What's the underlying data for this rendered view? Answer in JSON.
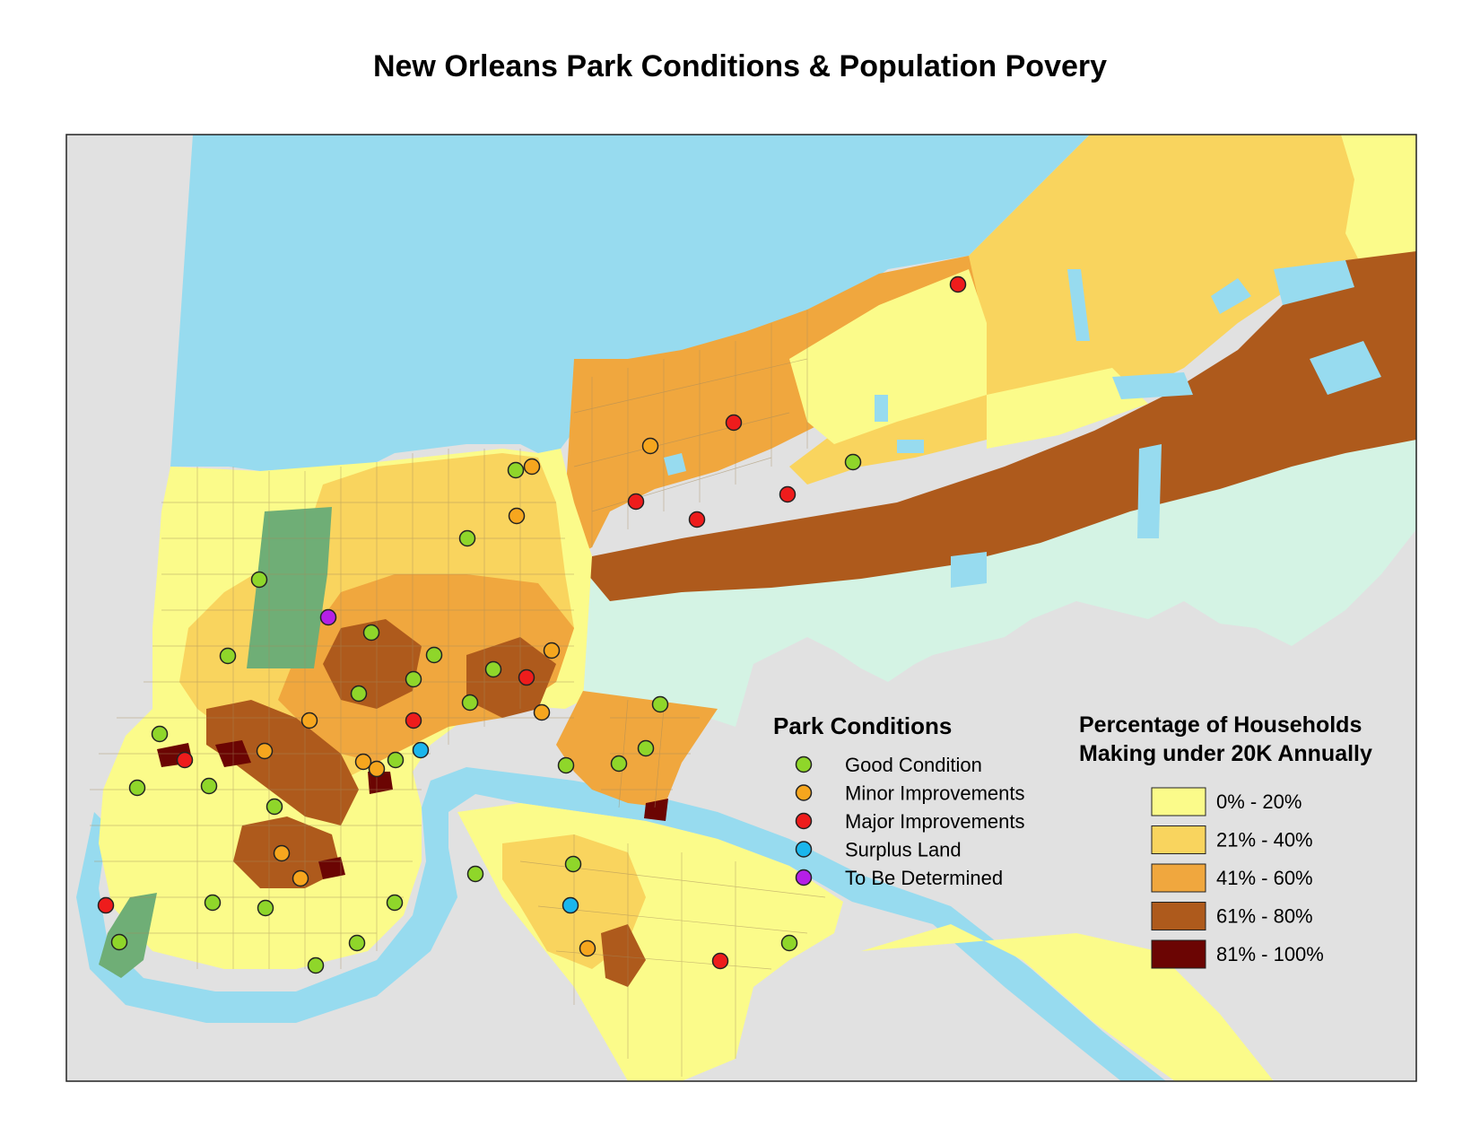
{
  "title": "New Orleans Park Conditions & Population Povery",
  "colors": {
    "water": "#97dbef",
    "land_outside": "#e1e1e1",
    "wetland": "#d4f3e4",
    "park": "#6fae76",
    "tract_lines": "#a48a5c"
  },
  "park_legend": {
    "title": "Park Conditions",
    "items": [
      {
        "label": "Good Condition",
        "color": "#8fd62a"
      },
      {
        "label": "Minor Improvements",
        "color": "#f6a61e"
      },
      {
        "label": "Major Improvements",
        "color": "#ee1c1c"
      },
      {
        "label": "Surplus Land",
        "color": "#1ab6ec"
      },
      {
        "label": "To Be Determined",
        "color": "#b51fe6"
      }
    ]
  },
  "poverty_legend": {
    "title_line1": "Percentage of Households",
    "title_line2": "Making under 20K Annually",
    "classes": [
      {
        "label": "0% - 20%",
        "color": "#fbfb8a"
      },
      {
        "label": "21% - 40%",
        "color": "#f9d45e"
      },
      {
        "label": "41% - 60%",
        "color": "#f0a73e"
      },
      {
        "label": "61% - 80%",
        "color": "#ae5a1c"
      },
      {
        "label": "81% - 100%",
        "color": "#6b0503"
      }
    ]
  }
}
